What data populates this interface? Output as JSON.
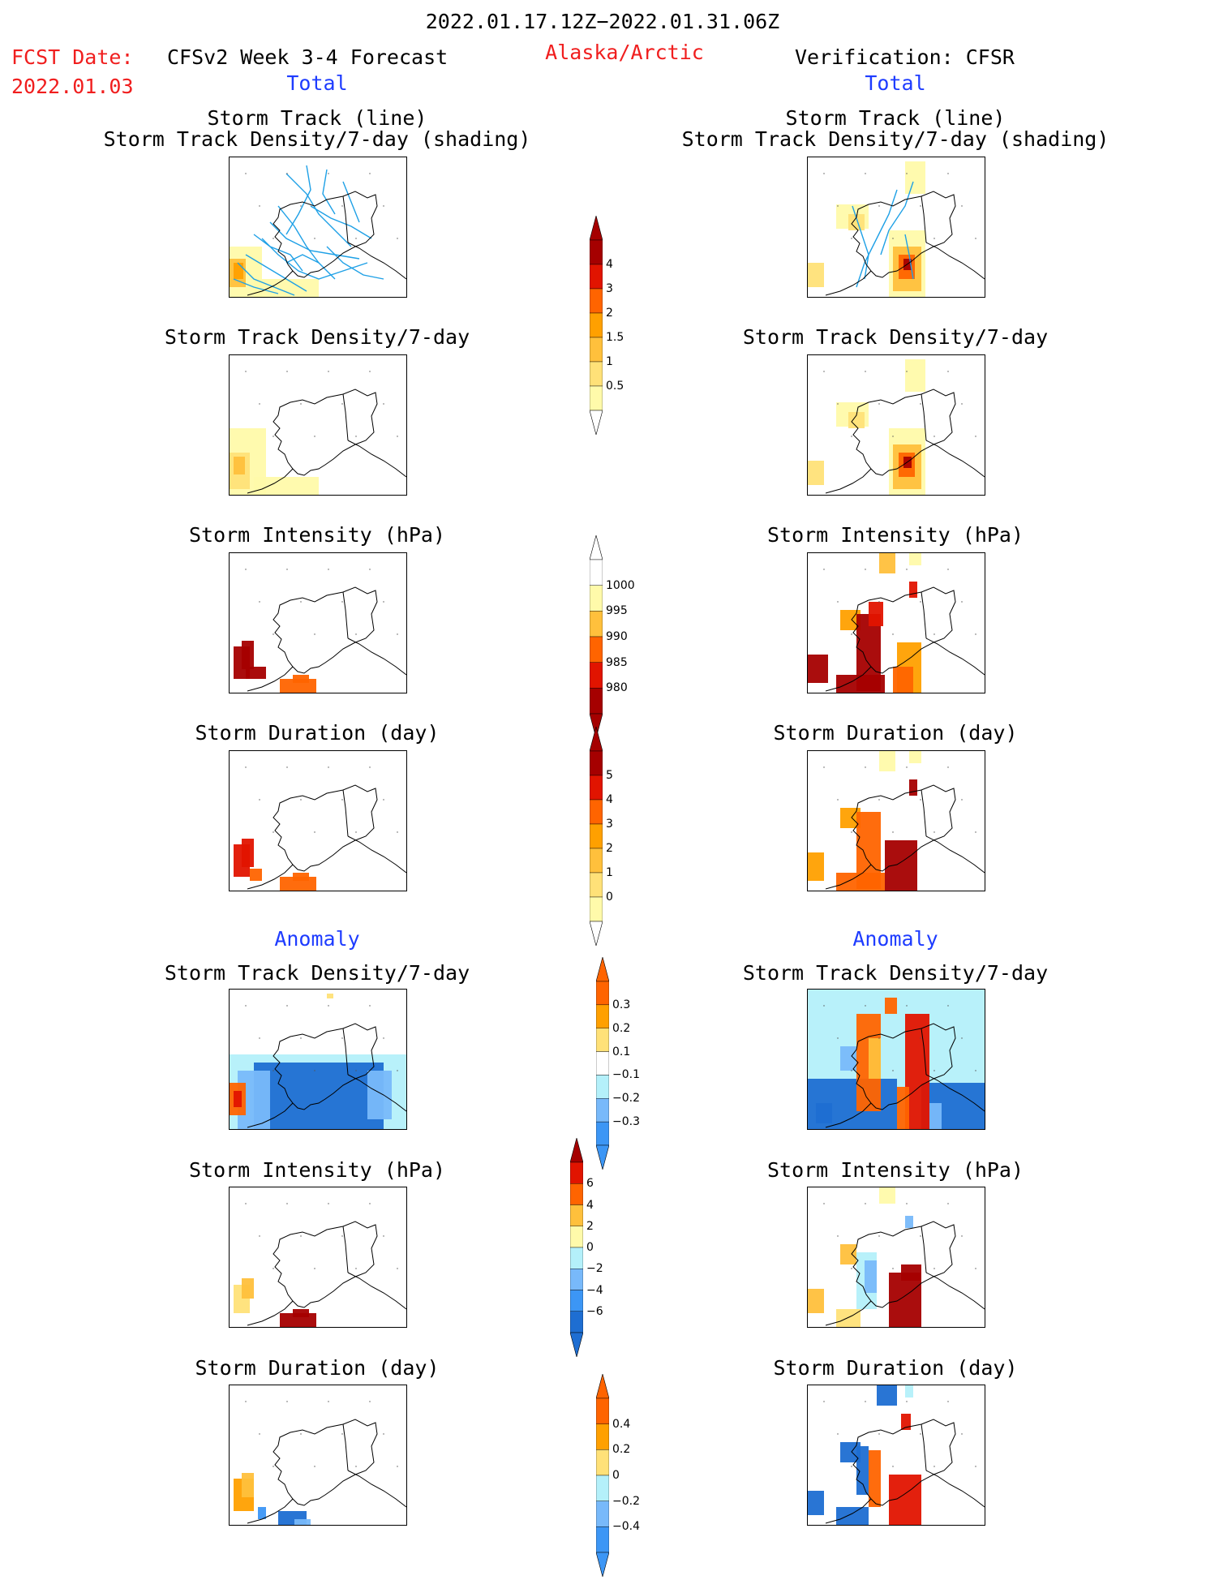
{
  "header": {
    "period": "2022.01.17.12Z−2022.01.31.06Z",
    "fcst_label": "FCST Date:",
    "fcst_date": "2022.01.03",
    "left_title": "CFSv2 Week 3-4 Forecast",
    "region": "Alaska/Arctic",
    "right_title": "Verification: CFSR",
    "left_total": "Total",
    "right_total": "Total"
  },
  "panel_titles": {
    "track_line": "Storm Track (line)",
    "track_density_shading": "Storm Track Density/7-day (shading)",
    "track_density": "Storm Track Density/7-day",
    "intensity": "Storm Intensity (hPa)",
    "duration": "Storm Duration (day)",
    "anomaly": "Anomaly"
  },
  "colors": {
    "title_red": "#f01e1e",
    "title_blue": "#1e3cff",
    "track_line": "#1ea0e6",
    "warm": [
      "#fffaaa",
      "#ffe178",
      "#ffc03c",
      "#ffa000",
      "#ff6400",
      "#e11400",
      "#a50000"
    ],
    "cool": [
      "#b4f0fa",
      "#78b9fa",
      "#3c96f5",
      "#1e6ed2"
    ]
  },
  "chart_data": [
    {
      "type": "heatmap",
      "name_ref": "CFSv2 Total Storm Track Density with tracks",
      "colorbar": "density"
    },
    {
      "type": "heatmap",
      "name_ref": "CFSR Total Storm Track Density with tracks",
      "colorbar": "density"
    },
    {
      "type": "heatmap",
      "name_ref": "CFSv2 Total Storm Track Density",
      "colorbar": "density"
    },
    {
      "type": "heatmap",
      "name_ref": "CFSR Total Storm Track Density",
      "colorbar": "density"
    },
    {
      "type": "heatmap",
      "name_ref": "CFSv2 Total Storm Intensity",
      "colorbar": "intensity"
    },
    {
      "type": "heatmap",
      "name_ref": "CFSR Total Storm Intensity",
      "colorbar": "intensity"
    },
    {
      "type": "heatmap",
      "name_ref": "CFSv2 Total Storm Duration",
      "colorbar": "duration"
    },
    {
      "type": "heatmap",
      "name_ref": "CFSR Total Storm Duration",
      "colorbar": "duration"
    },
    {
      "type": "heatmap",
      "name_ref": "CFSv2 Anomaly Storm Track Density",
      "colorbar": "anom_density"
    },
    {
      "type": "heatmap",
      "name_ref": "CFSR Anomaly Storm Track Density",
      "colorbar": "anom_density"
    },
    {
      "type": "heatmap",
      "name_ref": "CFSv2 Anomaly Storm Intensity",
      "colorbar": "anom_intensity"
    },
    {
      "type": "heatmap",
      "name_ref": "CFSR Anomaly Storm Intensity",
      "colorbar": "anom_intensity"
    },
    {
      "type": "heatmap",
      "name_ref": "CFSv2 Anomaly Storm Duration",
      "colorbar": "anom_duration"
    },
    {
      "type": "heatmap",
      "name_ref": "CFSR Anomaly Storm Duration",
      "colorbar": "anom_duration"
    }
  ],
  "colorbars": {
    "density": {
      "labels": [
        "0.5",
        "1",
        "1.5",
        "2",
        "3",
        "4"
      ]
    },
    "intensity": {
      "labels": [
        "1000",
        "995",
        "990",
        "985",
        "980"
      ]
    },
    "duration": {
      "labels": [
        "0",
        "1",
        "2",
        "3",
        "4",
        "5"
      ]
    },
    "anom_density": {
      "labels": [
        "0.3",
        "0.2",
        "0.1",
        "−0.1",
        "−0.2",
        "−0.3"
      ]
    },
    "anom_intensity": {
      "labels": [
        "6",
        "4",
        "2",
        "0",
        "−2",
        "−4",
        "−6"
      ]
    },
    "anom_duration": {
      "labels": [
        "0.4",
        "0.2",
        "0",
        "−0.2",
        "−0.4"
      ]
    }
  }
}
